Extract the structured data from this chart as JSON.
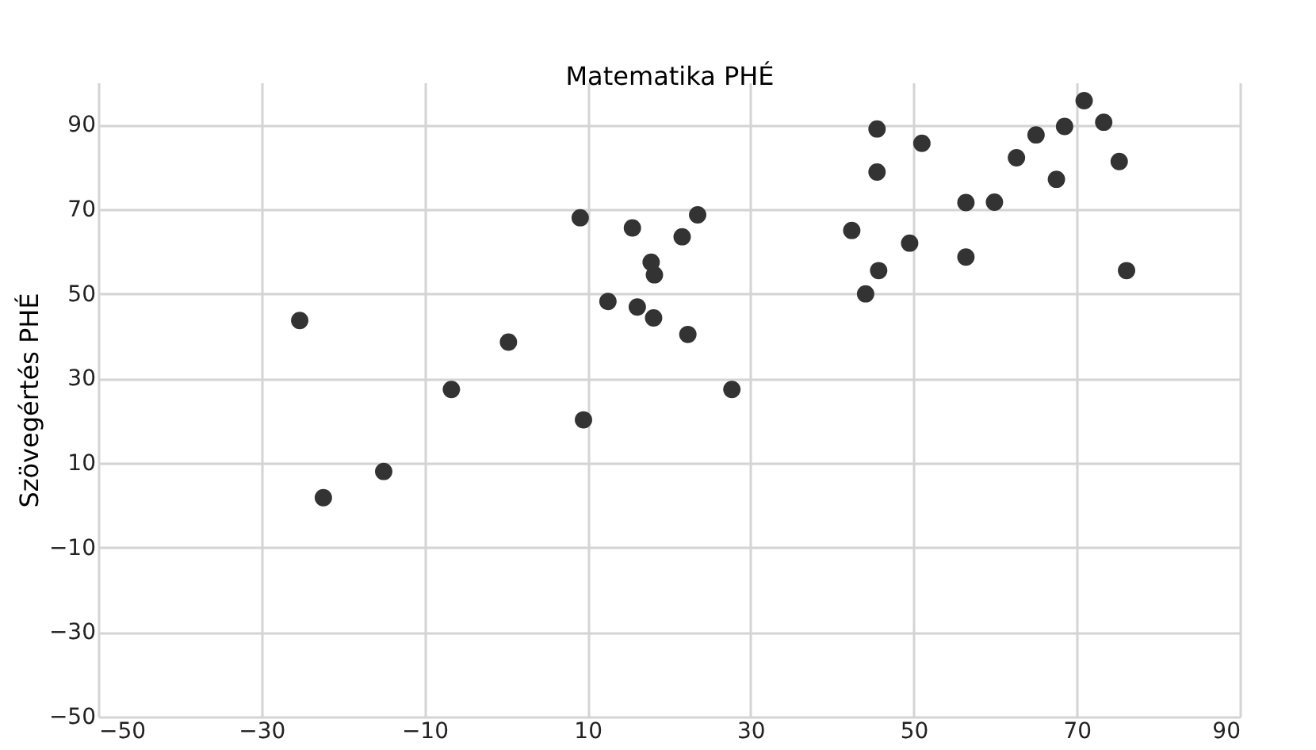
{
  "chart_data": {
    "type": "scatter",
    "xlabel": "Matematika PHÉ",
    "ylabel": "Szövegértés PHÉ",
    "xlim": [
      -50,
      90
    ],
    "ylim": [
      -50,
      100
    ],
    "xticks": [
      -50,
      -30,
      -10,
      10,
      30,
      50,
      70,
      90
    ],
    "yticks": [
      -50,
      -30,
      -10,
      10,
      30,
      50,
      70,
      90
    ],
    "grid": true,
    "marker": "circle",
    "series": [
      {
        "color": "#333333",
        "x": [
          -25.3,
          -22.4,
          -15,
          -6.7,
          0.3,
          9.1,
          9.5,
          12.5,
          15.5,
          16.1,
          17.8,
          18.2,
          18.1,
          21.6,
          23.5,
          22.3,
          27.7,
          42.4,
          45.5,
          45.5,
          51,
          49.5,
          45.7,
          44.1,
          56.4,
          59.9,
          56.4,
          62.6,
          65,
          68.5,
          70.9,
          73.3,
          67.5,
          75.2,
          76.1
        ],
        "values": [
          43.7,
          1.8,
          8,
          27.4,
          38.6,
          68,
          20.2,
          48.2,
          65.6,
          46.9,
          57.5,
          54.5,
          44.3,
          63.5,
          68.7,
          40.4,
          27.4,
          65,
          89,
          78.8,
          85.6,
          62,
          55.5,
          50,
          71.6,
          71.7,
          58.7,
          82.2,
          87.6,
          89.6,
          95.7,
          90.6,
          77.1,
          81.3,
          55.5
        ]
      }
    ]
  }
}
